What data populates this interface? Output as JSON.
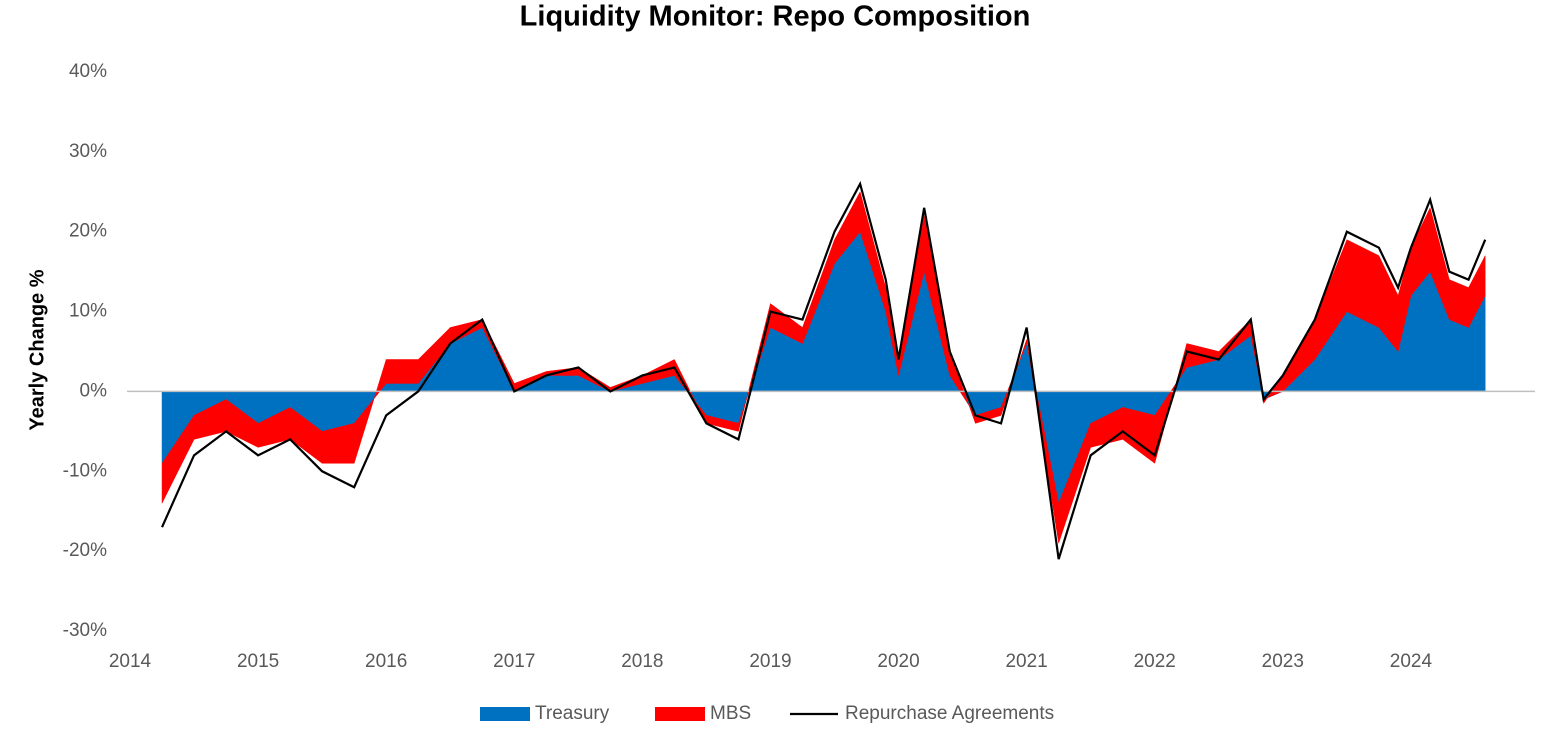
{
  "chart_data": {
    "type": "area",
    "title": "Liquidity Monitor: Repo Composition",
    "y_label": "Yearly Change %",
    "x": [
      2014.25,
      2014.5,
      2014.75,
      2015.0,
      2015.25,
      2015.5,
      2015.75,
      2016.0,
      2016.25,
      2016.5,
      2016.75,
      2017.0,
      2017.25,
      2017.5,
      2017.75,
      2018.0,
      2018.25,
      2018.5,
      2018.75,
      2019.0,
      2019.25,
      2019.5,
      2019.7,
      2019.9,
      2020.0,
      2020.2,
      2020.4,
      2020.6,
      2020.8,
      2021.0,
      2021.25,
      2021.5,
      2021.75,
      2022.0,
      2022.25,
      2022.5,
      2022.75,
      2022.85,
      2023.0,
      2023.25,
      2023.5,
      2023.75,
      2023.9,
      2024.0,
      2024.15,
      2024.3,
      2024.45,
      2024.58
    ],
    "series": [
      {
        "name": "Treasury",
        "type": "area",
        "color": "#0070c0",
        "values": [
          -9,
          -3,
          -1,
          -4,
          -2,
          -5,
          -4,
          1,
          1,
          6,
          8,
          0,
          2,
          2,
          0,
          1,
          2,
          -3,
          -4,
          8,
          6,
          16,
          20,
          10,
          2,
          15,
          2,
          -3,
          -2,
          6,
          -14,
          -4,
          -2,
          -3,
          3,
          4,
          7,
          -1,
          0,
          4,
          10,
          8,
          5,
          12,
          15,
          9,
          8,
          12
        ]
      },
      {
        "name": "MBS",
        "type": "area",
        "color": "#ff0000",
        "values": [
          -5,
          -3,
          -4,
          -3,
          -4,
          -4,
          -5,
          3,
          3,
          2,
          1,
          1,
          0.5,
          1,
          0.5,
          1,
          2,
          -1,
          -1,
          3,
          2,
          3,
          5,
          3,
          2,
          7,
          3,
          -1,
          -1,
          0.5,
          -5,
          -3,
          -4,
          -6,
          3,
          1,
          2,
          -0.5,
          2,
          5,
          9,
          9,
          7,
          6,
          8,
          5,
          5,
          5
        ]
      },
      {
        "name": "Repurchase Agreements",
        "type": "line",
        "color": "#000000",
        "values": [
          -17,
          -8,
          -5,
          -8,
          -6,
          -10,
          -12,
          -3,
          0,
          6,
          9,
          0,
          2,
          3,
          0,
          2,
          3,
          -4,
          -6,
          10,
          9,
          20,
          26,
          14,
          4,
          23,
          5,
          -3,
          -4,
          8,
          -21,
          -8,
          -5,
          -8,
          5,
          4,
          9,
          -1,
          2,
          9,
          20,
          18,
          13,
          18,
          24,
          15,
          14,
          19
        ]
      }
    ],
    "xlim": [
      2014,
      2025
    ],
    "xticks": [
      2014,
      2015,
      2016,
      2017,
      2018,
      2019,
      2020,
      2021,
      2022,
      2023,
      2024
    ],
    "ylim": [
      -30,
      40
    ],
    "yticks": [
      {
        "value": -30,
        "label": "-30%"
      },
      {
        "value": -20,
        "label": "-20%"
      },
      {
        "value": -10,
        "label": "-10%"
      },
      {
        "value": 0,
        "label": "0%"
      },
      {
        "value": 10,
        "label": "10%"
      },
      {
        "value": 20,
        "label": "20%"
      },
      {
        "value": 30,
        "label": "30%"
      },
      {
        "value": 40,
        "label": "40%"
      }
    ],
    "legend": "bottom"
  }
}
